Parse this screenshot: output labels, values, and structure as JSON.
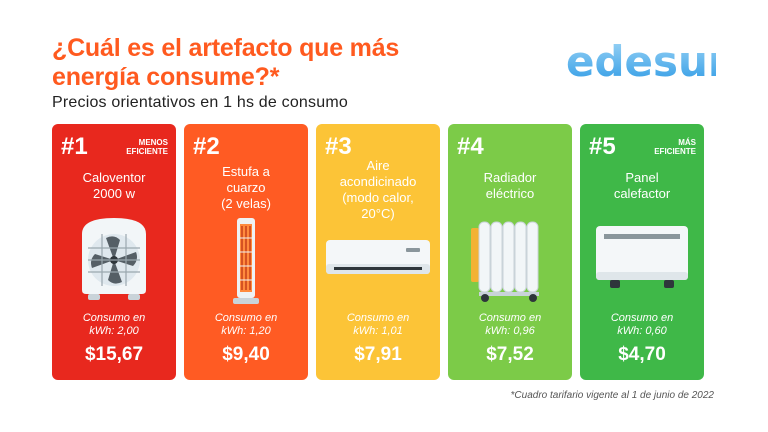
{
  "header": {
    "title": "¿Cuál es el artefacto que más\nenergía consume?*",
    "subtitle": "Precios orientativos en 1 hs de consumo",
    "logo_text": "edesur"
  },
  "colors": {
    "title": "#ff5a1f",
    "card1": "#e8281e",
    "card2": "#ff5b23",
    "card3": "#fcc437",
    "card4": "#7ccb48",
    "card5": "#3fb848",
    "logo_blue": "#2d9ae5",
    "logo_light": "#9fd6f6"
  },
  "cards": [
    {
      "rank": "#1",
      "tag": "MENOS\nEFICIENTE",
      "name": "Caloventor\n2000 w",
      "icon": "fan-heater-icon",
      "consumo": "Consumo en\nkWh: 2,00",
      "price": "$15,67"
    },
    {
      "rank": "#2",
      "tag": "",
      "name": "Estufa a\ncuarzo\n(2 velas)",
      "icon": "quartz-heater-icon",
      "consumo": "Consumo en\nkWh: 1,20",
      "price": "$9,40"
    },
    {
      "rank": "#3",
      "tag": "",
      "name": "Aire\nacondicinado\n(modo calor,\n20°C)",
      "icon": "air-conditioner-icon",
      "consumo": "Consumo en\nkWh: 1,01",
      "price": "$7,91"
    },
    {
      "rank": "#4",
      "tag": "",
      "name": "Radiador\neléctrico",
      "icon": "oil-radiator-icon",
      "consumo": "Consumo en\nkWh: 0,96",
      "price": "$7,52"
    },
    {
      "rank": "#5",
      "tag": "MÁS\nEFICIENTE",
      "name": "Panel\ncalefactor",
      "icon": "panel-heater-icon",
      "consumo": "Consumo en\nkWh: 0,60",
      "price": "$4,70"
    }
  ],
  "footnote": "*Cuadro tarifario vigente al 1 de junio de 2022"
}
